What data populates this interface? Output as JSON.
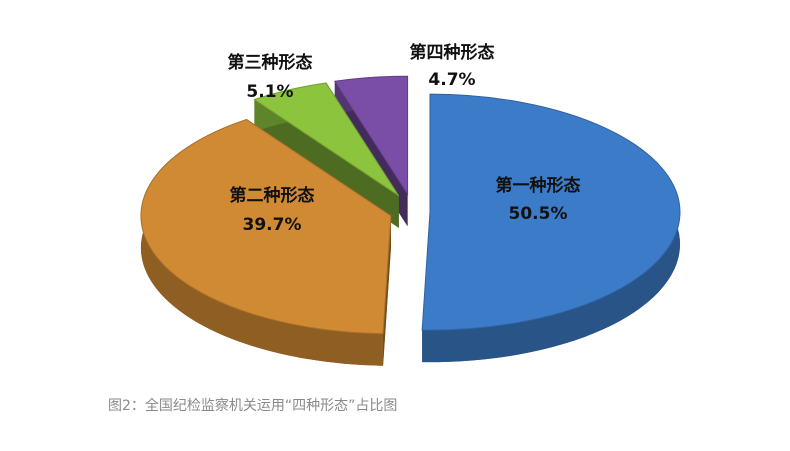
{
  "chart_data": {
    "type": "pie",
    "categories": [
      "第一种形态",
      "第二种形态",
      "第三种形态",
      "第四种形态"
    ],
    "values": [
      50.5,
      39.7,
      5.1,
      4.7
    ],
    "value_labels": [
      "50.5%",
      "39.7%",
      "5.1%",
      "4.7%"
    ],
    "colors": [
      "#3b7bc8",
      "#d18a34",
      "#8cc43e",
      "#7a4ea6"
    ],
    "caption": "图2：全国纪检监察机关运用“四种形态”占比图"
  }
}
